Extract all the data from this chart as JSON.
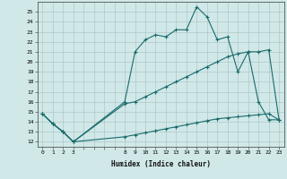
{
  "xlabel": "Humidex (Indice chaleur)",
  "bg_color": "#d0e8e8",
  "grid_color": "#b0c8c8",
  "line_color": "#1a6b6b",
  "ylim": [
    11.5,
    26.0
  ],
  "xlim": [
    -0.5,
    23.5
  ],
  "y_ticks": [
    12,
    13,
    14,
    15,
    16,
    17,
    18,
    19,
    20,
    21,
    22,
    23,
    24,
    25
  ],
  "x_ticks": [
    0,
    1,
    2,
    3,
    8,
    9,
    10,
    11,
    12,
    13,
    14,
    15,
    16,
    17,
    18,
    19,
    20,
    21,
    22,
    23
  ],
  "line1_x": [
    0,
    1,
    2,
    3,
    8,
    9,
    10,
    11,
    12,
    13,
    14,
    15,
    16,
    17,
    18,
    19,
    20,
    21,
    22,
    23
  ],
  "line1_y": [
    14.8,
    13.8,
    13.0,
    12.0,
    16.0,
    21.0,
    22.2,
    22.7,
    22.5,
    23.2,
    23.2,
    25.5,
    24.5,
    22.2,
    22.5,
    19.0,
    21.0,
    16.0,
    14.2,
    14.2
  ],
  "line2_x": [
    0,
    1,
    2,
    3,
    8,
    9,
    10,
    11,
    12,
    13,
    14,
    15,
    16,
    17,
    18,
    19,
    20,
    21,
    22,
    23
  ],
  "line2_y": [
    14.8,
    13.8,
    13.0,
    12.0,
    15.8,
    16.0,
    16.5,
    17.0,
    17.5,
    18.0,
    18.5,
    19.0,
    19.5,
    20.0,
    20.5,
    20.8,
    21.0,
    21.0,
    21.2,
    14.2
  ],
  "line3_x": [
    0,
    1,
    2,
    3,
    8,
    9,
    10,
    11,
    12,
    13,
    14,
    15,
    16,
    17,
    18,
    19,
    20,
    21,
    22,
    23
  ],
  "line3_y": [
    14.8,
    13.8,
    13.0,
    12.0,
    12.5,
    12.7,
    12.9,
    13.1,
    13.3,
    13.5,
    13.7,
    13.9,
    14.1,
    14.3,
    14.4,
    14.5,
    14.6,
    14.7,
    14.8,
    14.2
  ],
  "lw": 0.8,
  "ms": 3.5
}
